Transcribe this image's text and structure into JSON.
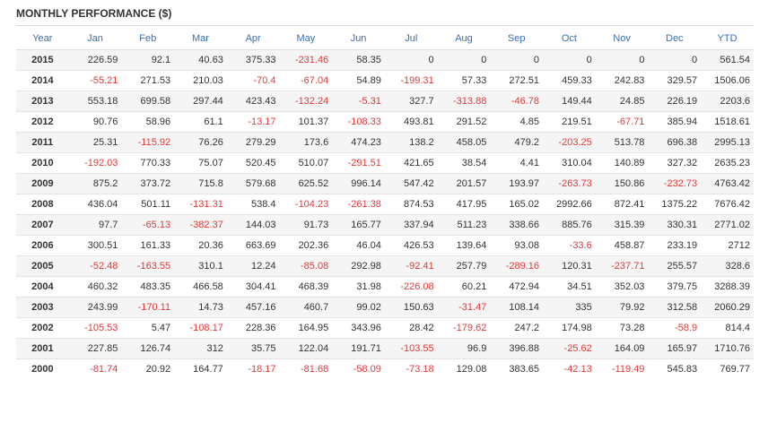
{
  "header": {
    "title": "MONTHLY PERFORMANCE ($)"
  },
  "table": {
    "columns": [
      "Year",
      "Jan",
      "Feb",
      "Mar",
      "Apr",
      "May",
      "Jun",
      "Jul",
      "Aug",
      "Sep",
      "Oct",
      "Nov",
      "Dec",
      "YTD"
    ],
    "rows": [
      [
        "2015",
        "226.59",
        "92.1",
        "40.63",
        "375.33",
        "-231.46",
        "58.35",
        "0",
        "0",
        "0",
        "0",
        "0",
        "0",
        "561.54"
      ],
      [
        "2014",
        "-55.21",
        "271.53",
        "210.03",
        "-70.4",
        "-67.04",
        "54.89",
        "-199.31",
        "57.33",
        "272.51",
        "459.33",
        "242.83",
        "329.57",
        "1506.06"
      ],
      [
        "2013",
        "553.18",
        "699.58",
        "297.44",
        "423.43",
        "-132.24",
        "-5.31",
        "327.7",
        "-313.88",
        "-46.78",
        "149.44",
        "24.85",
        "226.19",
        "2203.6"
      ],
      [
        "2012",
        "90.76",
        "58.96",
        "61.1",
        "-13.17",
        "101.37",
        "-108.33",
        "493.81",
        "291.52",
        "4.85",
        "219.51",
        "-67.71",
        "385.94",
        "1518.61"
      ],
      [
        "2011",
        "25.31",
        "-115.92",
        "76.26",
        "279.29",
        "173.6",
        "474.23",
        "138.2",
        "458.05",
        "479.2",
        "-203.25",
        "513.78",
        "696.38",
        "2995.13"
      ],
      [
        "2010",
        "-192.03",
        "770.33",
        "75.07",
        "520.45",
        "510.07",
        "-291.51",
        "421.65",
        "38.54",
        "4.41",
        "310.04",
        "140.89",
        "327.32",
        "2635.23"
      ],
      [
        "2009",
        "875.2",
        "373.72",
        "715.8",
        "579.68",
        "625.52",
        "996.14",
        "547.42",
        "201.57",
        "193.97",
        "-263.73",
        "150.86",
        "-232.73",
        "4763.42"
      ],
      [
        "2008",
        "436.04",
        "501.11",
        "-131.31",
        "538.4",
        "-104.23",
        "-261.38",
        "874.53",
        "417.95",
        "165.02",
        "2992.66",
        "872.41",
        "1375.22",
        "7676.42"
      ],
      [
        "2007",
        "97.7",
        "-65.13",
        "-382.37",
        "144.03",
        "91.73",
        "165.77",
        "337.94",
        "511.23",
        "338.66",
        "885.76",
        "315.39",
        "330.31",
        "2771.02"
      ],
      [
        "2006",
        "300.51",
        "161.33",
        "20.36",
        "663.69",
        "202.36",
        "46.04",
        "426.53",
        "139.64",
        "93.08",
        "-33.6",
        "458.87",
        "233.19",
        "2712"
      ],
      [
        "2005",
        "-52.48",
        "-163.55",
        "310.1",
        "12.24",
        "-85.08",
        "292.98",
        "-92.41",
        "257.79",
        "-289.16",
        "120.31",
        "-237.71",
        "255.57",
        "328.6"
      ],
      [
        "2004",
        "460.32",
        "483.35",
        "466.58",
        "304.41",
        "468.39",
        "31.98",
        "-226.08",
        "60.21",
        "472.94",
        "34.51",
        "352.03",
        "379.75",
        "3288.39"
      ],
      [
        "2003",
        "243.99",
        "-170.11",
        "14.73",
        "457.16",
        "460.7",
        "99.02",
        "150.63",
        "-31.47",
        "108.14",
        "335",
        "79.92",
        "312.58",
        "2060.29"
      ],
      [
        "2002",
        "-105.53",
        "5.47",
        "-108.17",
        "228.36",
        "164.95",
        "343.96",
        "28.42",
        "-179.62",
        "247.2",
        "174.98",
        "73.28",
        "-58.9",
        "814.4"
      ],
      [
        "2001",
        "227.85",
        "126.74",
        "312",
        "35.75",
        "122.04",
        "191.71",
        "-103.55",
        "96.9",
        "396.88",
        "-25.62",
        "164.09",
        "165.97",
        "1710.76"
      ],
      [
        "2000",
        "-81.74",
        "20.92",
        "164.77",
        "-18.17",
        "-81.68",
        "-58.09",
        "-73.18",
        "129.08",
        "383.65",
        "-42.13",
        "-119.49",
        "545.83",
        "769.77"
      ]
    ]
  }
}
